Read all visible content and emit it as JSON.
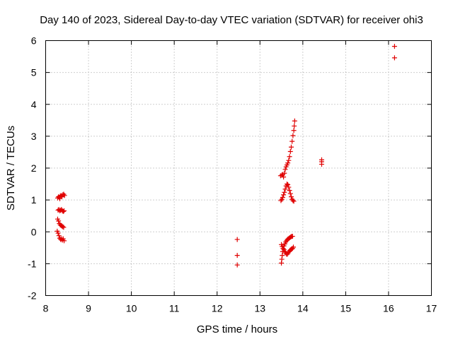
{
  "chart_data": {
    "type": "scatter",
    "title": "Day 140 of 2023, Sidereal Day-to-day VTEC variation (SDTVAR) for receiver ohi3",
    "xlabel": "GPS time / hours",
    "ylabel": "SDTVAR / TECUs",
    "xlim": [
      8,
      17
    ],
    "ylim": [
      -2,
      6
    ],
    "xticks": [
      8,
      9,
      10,
      11,
      12,
      13,
      14,
      15,
      16,
      17
    ],
    "yticks": [
      -2,
      -1,
      0,
      1,
      2,
      3,
      4,
      5,
      6
    ],
    "grid": true,
    "marker": "+",
    "color": "#e00000",
    "series": [
      {
        "name": "SDTVAR",
        "points": [
          [
            8.28,
            1.06
          ],
          [
            8.3,
            1.1
          ],
          [
            8.32,
            1.08
          ],
          [
            8.34,
            1.12
          ],
          [
            8.36,
            1.14
          ],
          [
            8.38,
            1.1
          ],
          [
            8.4,
            1.16
          ],
          [
            8.42,
            1.18
          ],
          [
            8.44,
            1.14
          ],
          [
            8.33,
            1.04
          ],
          [
            8.29,
            0.68
          ],
          [
            8.31,
            0.7
          ],
          [
            8.33,
            0.66
          ],
          [
            8.35,
            0.68
          ],
          [
            8.37,
            0.7
          ],
          [
            8.39,
            0.66
          ],
          [
            8.41,
            0.64
          ],
          [
            8.43,
            0.66
          ],
          [
            8.28,
            0.4
          ],
          [
            8.3,
            0.34
          ],
          [
            8.32,
            0.26
          ],
          [
            8.34,
            0.22
          ],
          [
            8.36,
            0.2
          ],
          [
            8.38,
            0.18
          ],
          [
            8.4,
            0.16
          ],
          [
            8.42,
            0.14
          ],
          [
            8.27,
            0.02
          ],
          [
            8.29,
            -0.04
          ],
          [
            8.31,
            -0.12
          ],
          [
            8.33,
            -0.2
          ],
          [
            8.35,
            -0.24
          ],
          [
            8.37,
            -0.22
          ],
          [
            8.39,
            -0.26
          ],
          [
            8.41,
            -0.22
          ],
          [
            8.43,
            -0.28
          ],
          [
            12.47,
            -0.24
          ],
          [
            12.47,
            -0.74
          ],
          [
            12.47,
            -1.04
          ],
          [
            13.48,
            1.76
          ],
          [
            13.51,
            1.78
          ],
          [
            13.53,
            1.8
          ],
          [
            13.55,
            1.72
          ],
          [
            13.49,
            0.98
          ],
          [
            13.51,
            1.02
          ],
          [
            13.53,
            1.08
          ],
          [
            13.55,
            1.16
          ],
          [
            13.57,
            1.24
          ],
          [
            13.59,
            1.34
          ],
          [
            13.61,
            1.44
          ],
          [
            13.63,
            1.5
          ],
          [
            13.65,
            1.48
          ],
          [
            13.67,
            1.4
          ],
          [
            13.69,
            1.3
          ],
          [
            13.71,
            1.2
          ],
          [
            13.73,
            1.1
          ],
          [
            13.75,
            1.02
          ],
          [
            13.77,
            0.98
          ],
          [
            13.79,
            0.96
          ],
          [
            13.57,
            1.84
          ],
          [
            13.59,
            1.96
          ],
          [
            13.61,
            2.04
          ],
          [
            13.63,
            2.1
          ],
          [
            13.65,
            2.16
          ],
          [
            13.67,
            2.24
          ],
          [
            13.69,
            2.36
          ],
          [
            13.71,
            2.52
          ],
          [
            13.73,
            2.66
          ],
          [
            13.75,
            2.84
          ],
          [
            13.77,
            3.02
          ],
          [
            13.79,
            3.18
          ],
          [
            13.8,
            3.32
          ],
          [
            13.81,
            3.48
          ],
          [
            13.5,
            -0.98
          ],
          [
            13.51,
            -0.86
          ],
          [
            13.52,
            -0.74
          ],
          [
            13.53,
            -0.62
          ],
          [
            13.54,
            -0.52
          ],
          [
            13.56,
            -0.44
          ],
          [
            13.58,
            -0.38
          ],
          [
            13.6,
            -0.32
          ],
          [
            13.62,
            -0.28
          ],
          [
            13.64,
            -0.24
          ],
          [
            13.66,
            -0.22
          ],
          [
            13.68,
            -0.2
          ],
          [
            13.7,
            -0.18
          ],
          [
            13.72,
            -0.16
          ],
          [
            13.74,
            -0.14
          ],
          [
            13.76,
            -0.14
          ],
          [
            13.5,
            -0.4
          ],
          [
            13.52,
            -0.46
          ],
          [
            13.54,
            -0.52
          ],
          [
            13.56,
            -0.56
          ],
          [
            13.58,
            -0.62
          ],
          [
            13.6,
            -0.66
          ],
          [
            13.62,
            -0.7
          ],
          [
            13.64,
            -0.7
          ],
          [
            13.66,
            -0.66
          ],
          [
            13.68,
            -0.62
          ],
          [
            13.7,
            -0.58
          ],
          [
            13.72,
            -0.56
          ],
          [
            13.74,
            -0.54
          ],
          [
            13.76,
            -0.52
          ],
          [
            13.78,
            -0.48
          ],
          [
            14.44,
            2.12
          ],
          [
            14.44,
            2.2
          ],
          [
            14.44,
            2.26
          ],
          [
            16.14,
            5.82
          ],
          [
            16.14,
            5.46
          ]
        ]
      }
    ]
  }
}
